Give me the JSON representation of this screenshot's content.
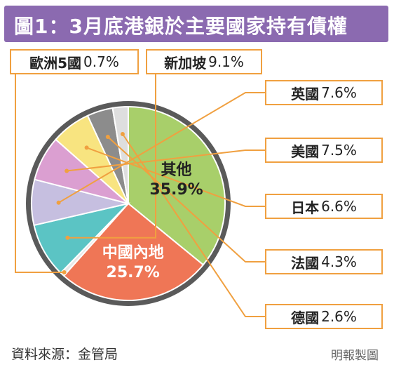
{
  "header": {
    "title": "圖1：3月底港銀於主要國家持有債權"
  },
  "footer": {
    "source": "資料來源：金管局",
    "credit": "明報製圖"
  },
  "colors": {
    "banner": "#8b6ab0",
    "callout_border": "#f0a040",
    "leader_line": "#f0a040",
    "pie_ring": "#5a5a5a"
  },
  "chart_data": {
    "type": "pie",
    "title": "圖1：3月底港銀於主要國家持有債權",
    "unit": "%",
    "slices": [
      {
        "name": "其他",
        "label": "35.9%",
        "value": 35.9,
        "color": "#a8cf6a"
      },
      {
        "name": "中國內地",
        "label": "25.7%",
        "value": 25.7,
        "color": "#ef7656"
      },
      {
        "name": "歐洲5國",
        "label": "0.7%",
        "value": 0.7,
        "color": "#e8e8e8"
      },
      {
        "name": "新加坡",
        "label": "9.1%",
        "value": 9.1,
        "color": "#5bc4c4"
      },
      {
        "name": "英國",
        "label": "7.6%",
        "value": 7.6,
        "color": "#c6bfe0"
      },
      {
        "name": "美國",
        "label": "7.5%",
        "value": 7.5,
        "color": "#db9fd1"
      },
      {
        "name": "日本",
        "label": "6.6%",
        "value": 6.6,
        "color": "#f8e480"
      },
      {
        "name": "法國",
        "label": "4.3%",
        "value": 4.3,
        "color": "#8c8c8c"
      },
      {
        "name": "德國",
        "label": "2.6%",
        "value": 2.6,
        "color": "#dedede"
      }
    ]
  }
}
